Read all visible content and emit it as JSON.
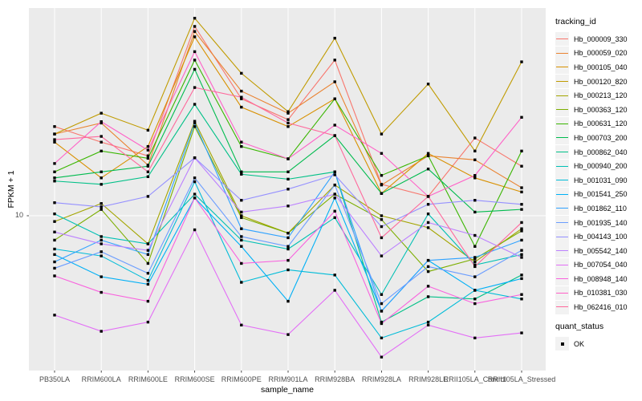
{
  "chart_data": {
    "type": "line",
    "title": "",
    "xlabel": "sample_name",
    "ylabel": "FPKM + 1",
    "y_scale": "log10",
    "ylim": [
      1.9,
      92
    ],
    "y_tick_labels": [
      "10"
    ],
    "y_tick_values": [
      10
    ],
    "grid": "major-white-on-gray",
    "legend_position": "right",
    "point_marker": "black-square",
    "categories": [
      "PB350LA",
      "RRIM600LA",
      "RRIM600LE",
      "RRIM600SE",
      "RRIM600PE",
      "RRIM901LA",
      "RRIM928BA",
      "RRIM928LA",
      "RRIM928LE",
      "RRII105LA_Control",
      "RRII105LA_Stressed"
    ],
    "series": [
      {
        "id": "Hb_000009_330",
        "color": "#F8766D",
        "values": [
          26,
          22,
          19,
          76,
          35,
          28,
          53,
          14,
          12.3,
          23,
          17
        ]
      },
      {
        "id": "Hb_000059_020",
        "color": "#EA8331",
        "values": [
          24,
          27,
          17.2,
          72,
          38,
          30,
          42,
          13.9,
          19,
          18.2,
          13.5
        ]
      },
      {
        "id": "Hb_000105_040",
        "color": "#D89000",
        "values": [
          22,
          15,
          21,
          68,
          32,
          26,
          35,
          12.7,
          19.5,
          15,
          12.9
        ]
      },
      {
        "id": "Hb_000120_820",
        "color": "#C09B00",
        "values": [
          24,
          30,
          25,
          83,
          46,
          30.5,
          67,
          24,
          41,
          20,
          52
        ]
      },
      {
        "id": "Hb_000213_120",
        "color": "#A3A500",
        "values": [
          9.4,
          11.4,
          7.4,
          27.5,
          10,
          8.3,
          13.9,
          10,
          8.8,
          6.1,
          8.7
        ]
      },
      {
        "id": "Hb_000363_120",
        "color": "#7CAE00",
        "values": [
          7.7,
          10.7,
          6.0,
          26,
          9.8,
          8.3,
          12.6,
          9.6,
          5.5,
          6.3,
          8.5
        ]
      },
      {
        "id": "Hb_000631_120",
        "color": "#39B600",
        "values": [
          16,
          20,
          18.5,
          53,
          21,
          18.4,
          35,
          15.4,
          19,
          7.2,
          20
        ]
      },
      {
        "id": "Hb_000703_200",
        "color": "#00BB4E",
        "values": [
          15,
          16,
          17,
          48,
          16,
          16,
          23.6,
          12.7,
          16.5,
          10.4,
          10.7
        ]
      },
      {
        "id": "Hb_000862_040",
        "color": "#00C087",
        "values": [
          14.5,
          14,
          15.2,
          33,
          15.6,
          14.8,
          16,
          3.2,
          4.2,
          4.1,
          5.3
        ]
      },
      {
        "id": "Hb_000940_200",
        "color": "#00C0B4",
        "values": [
          10.2,
          8.0,
          7.4,
          12.6,
          7.7,
          7.0,
          9.8,
          4.3,
          10.2,
          5.9,
          6.6
        ]
      },
      {
        "id": "Hb_001031_090",
        "color": "#00BCD8",
        "values": [
          7.0,
          6.5,
          5.0,
          14.4,
          4.9,
          5.6,
          5.3,
          2.7,
          3.2,
          4.5,
          4.1
        ]
      },
      {
        "id": "Hb_001541_250",
        "color": "#00B0F6",
        "values": [
          6.6,
          5.2,
          4.8,
          12.1,
          7.2,
          4.0,
          12.1,
          3.6,
          6.2,
          4.5,
          5.1
        ]
      },
      {
        "id": "Hb_001862_110",
        "color": "#2FA2FF",
        "values": [
          6.1,
          7.7,
          6.6,
          27,
          8.7,
          7.9,
          16,
          3.6,
          6.2,
          6.4,
          7.7
        ]
      },
      {
        "id": "Hb_001935_140",
        "color": "#6B9DFF",
        "values": [
          5.7,
          6.8,
          5.4,
          15,
          8.0,
          7.2,
          13.9,
          3.9,
          5.8,
          5.2,
          6.9
        ]
      },
      {
        "id": "Hb_004143_100",
        "color": "#9590FF",
        "values": [
          11.5,
          11.0,
          12.3,
          18.6,
          11.8,
          13.3,
          15.5,
          8.9,
          11.3,
          11.8,
          11.3
        ]
      },
      {
        "id": "Hb_005542_140",
        "color": "#BC81FF",
        "values": [
          8.4,
          7.4,
          6.9,
          18.6,
          10.4,
          11.1,
          12.6,
          6.5,
          9.3,
          8.1,
          6.4
        ]
      },
      {
        "id": "Hb_007054_040",
        "color": "#E36EF6",
        "values": [
          3.45,
          2.9,
          3.2,
          8.6,
          3.1,
          2.8,
          4.5,
          2.2,
          3.1,
          2.7,
          2.85
        ]
      },
      {
        "id": "Hb_008948_140",
        "color": "#F962DE",
        "values": [
          5.25,
          4.4,
          4.0,
          12.1,
          6.0,
          6.2,
          10.5,
          3.15,
          4.7,
          3.9,
          4.3
        ]
      },
      {
        "id": "Hb_010381_030",
        "color": "#FF61C7",
        "values": [
          17.5,
          27.4,
          20.2,
          58,
          22,
          18.4,
          26.4,
          19.5,
          12.3,
          15.4,
          28.7
        ]
      },
      {
        "id": "Hb_062416_010",
        "color": "#FF689C",
        "values": [
          22.6,
          23.4,
          16,
          39.5,
          35.6,
          27,
          23.6,
          7.9,
          12.3,
          5.8,
          9.3
        ]
      }
    ],
    "legend": {
      "tracking": {
        "title": "tracking_id"
      },
      "quant": {
        "title": "quant_status",
        "items": [
          {
            "label": "OK",
            "marker": "black-square-icon"
          }
        ]
      }
    },
    "style": {
      "panel_bg": "#EBEBEB",
      "grid_color": "#FFFFFF",
      "point_color": "#000000",
      "tick_color": "#333333",
      "tick_label_color": "#4D4D4D",
      "legend_key_bg": "#F2F2F2"
    }
  }
}
